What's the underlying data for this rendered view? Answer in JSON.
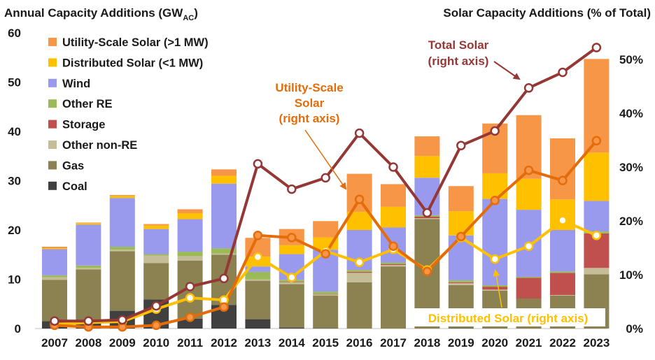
{
  "chart_data": {
    "type": "bar",
    "stacked": true,
    "left_axis_title": "Annual Capacity Additions (GW",
    "left_axis_title_sub": "AC",
    "left_axis_title_end": ")",
    "right_axis_title": "Solar Capacity Additions (% of Total)",
    "categories": [
      "2007",
      "2008",
      "2009",
      "2010",
      "2011",
      "2012",
      "2013",
      "2014",
      "2015",
      "2016",
      "2017",
      "2018",
      "2019",
      "2020",
      "2021",
      "2022",
      "2023"
    ],
    "ylim": [
      0,
      60
    ],
    "y_ticks": [
      "0",
      "10",
      "20",
      "30",
      "40",
      "50",
      "60"
    ],
    "y2lim": [
      0,
      55
    ],
    "y2_ticks": [
      "0%",
      "10%",
      "20%",
      "30%",
      "40%",
      "50%"
    ],
    "bar_series": [
      {
        "name": "Coal",
        "color": "#404040",
        "values": [
          1.5,
          1.4,
          3.6,
          5.9,
          2.0,
          4.8,
          1.9,
          0.2,
          0.1,
          0.0,
          0.0,
          0.0,
          0.1,
          0.0,
          0.0,
          0.0,
          0.0
        ]
      },
      {
        "name": "Gas",
        "color": "#8c8251",
        "values": [
          8.4,
          10.6,
          12.1,
          7.4,
          11.8,
          10.2,
          7.8,
          8.8,
          6.6,
          9.4,
          12.6,
          22.2,
          8.7,
          7.7,
          6.1,
          6.7,
          11.0
        ]
      },
      {
        "name": "Other non-RE",
        "color": "#c4bd97",
        "values": [
          0.5,
          0.3,
          0.3,
          1.5,
          0.9,
          0.2,
          0.3,
          0.4,
          0.2,
          1.9,
          0.3,
          0.2,
          0.4,
          0.2,
          0.0,
          0.1,
          1.3
        ]
      },
      {
        "name": "Storage",
        "color": "#c0504d",
        "values": [
          0.0,
          0.0,
          0.0,
          0.0,
          0.0,
          0.0,
          0.0,
          0.1,
          0.1,
          0.2,
          0.2,
          0.3,
          0.2,
          0.6,
          4.2,
          4.5,
          7.0
        ]
      },
      {
        "name": "Other RE",
        "color": "#9bbb59",
        "values": [
          0.4,
          0.5,
          0.6,
          0.3,
          0.9,
          1.1,
          1.5,
          0.4,
          0.5,
          0.4,
          0.3,
          0.3,
          0.4,
          0.3,
          0.2,
          0.3,
          0.4
        ]
      },
      {
        "name": "Wind",
        "color": "#9999ee",
        "values": [
          5.3,
          8.3,
          9.9,
          5.1,
          6.6,
          13.1,
          1.1,
          5.2,
          8.5,
          8.1,
          7.1,
          7.6,
          9.1,
          17.5,
          13.6,
          8.4,
          6.2
        ]
      },
      {
        "name": "Distributed Solar (<1 MW)",
        "color": "#ffc000",
        "values": [
          0.2,
          0.3,
          0.4,
          0.7,
          1.2,
          1.6,
          2.0,
          1.8,
          2.5,
          3.7,
          4.2,
          4.4,
          4.9,
          5.2,
          6.3,
          6.2,
          9.8
        ]
      },
      {
        "name": "Utility-Scale Solar (>1 MW)",
        "color": "#f79646",
        "values": [
          0.3,
          0.1,
          0.2,
          0.3,
          0.8,
          1.3,
          3.8,
          3.3,
          3.3,
          7.7,
          4.6,
          4.0,
          5.1,
          10.1,
          12.9,
          12.4,
          19.0
        ]
      }
    ],
    "line_series": [
      {
        "name": "Total Solar",
        "color": "#953735",
        "marker_fill": "#ffffff",
        "values": [
          1.4,
          1.4,
          1.6,
          4.2,
          7.8,
          9.3,
          30.6,
          25.9,
          28.0,
          36.3,
          30.0,
          21.5,
          34.0,
          36.7,
          44.7,
          47.6,
          52.2
        ]
      },
      {
        "name": "Utility-Scale Solar",
        "color": "#e46c0a",
        "marker_fill": "#f79646",
        "values": [
          0.6,
          0.3,
          0.3,
          0.6,
          2.1,
          4.0,
          17.3,
          16.9,
          13.9,
          24.0,
          15.3,
          10.6,
          17.1,
          23.8,
          29.4,
          27.5,
          34.9
        ]
      },
      {
        "name": "Distributed Solar",
        "color": "#ffc000",
        "marker_fill": "#ffffff",
        "values": [
          0.8,
          1.1,
          1.3,
          3.6,
          5.7,
          5.3,
          13.3,
          9.5,
          14.4,
          12.3,
          14.7,
          10.9,
          16.9,
          12.9,
          15.3,
          20.1,
          17.3
        ]
      }
    ],
    "legend_position": "top-left",
    "legend": [
      {
        "label": "Utility-Scale Solar (>1 MW)",
        "color": "#f79646"
      },
      {
        "label": "Distributed Solar (<1 MW)",
        "color": "#ffc000"
      },
      {
        "label": "Wind",
        "color": "#9999ee"
      },
      {
        "label": "Other RE",
        "color": "#9bbb59"
      },
      {
        "label": "Storage",
        "color": "#c0504d"
      },
      {
        "label": "Other non-RE",
        "color": "#c4bd97"
      },
      {
        "label": "Gas",
        "color": "#8c8251"
      },
      {
        "label": "Coal",
        "color": "#404040"
      }
    ],
    "annotations": [
      {
        "name": "total-solar",
        "lines": [
          "Total Solar",
          "(right axis)"
        ],
        "color": "#953735"
      },
      {
        "name": "utility-solar",
        "lines": [
          "Utility-Scale",
          "Solar",
          "(right axis)"
        ],
        "color": "#e46c0a"
      },
      {
        "name": "distributed-solar",
        "lines": [
          "Distributed Solar (right axis)"
        ],
        "color": "#ffc000"
      }
    ]
  }
}
